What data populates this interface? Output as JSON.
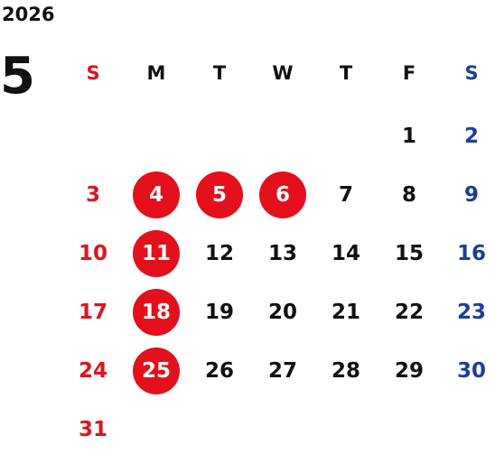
{
  "year": "2026",
  "month": "5",
  "weekdays": [
    "S",
    "M",
    "T",
    "W",
    "T",
    "F",
    "S"
  ],
  "days": [
    [
      "",
      "",
      "",
      "",
      "",
      "1",
      "2"
    ],
    [
      "3",
      "4",
      "5",
      "6",
      "7",
      "8",
      "9"
    ],
    [
      "10",
      "11",
      "12",
      "13",
      "14",
      "15",
      "16"
    ],
    [
      "17",
      "18",
      "19",
      "20",
      "21",
      "22",
      "23"
    ],
    [
      "24",
      "25",
      "26",
      "27",
      "28",
      "29",
      "30"
    ],
    [
      "31",
      "",
      "",
      "",
      "",
      "",
      ""
    ]
  ],
  "highlighted_days": [
    "4",
    "5",
    "6",
    "11",
    "18",
    "25"
  ],
  "colors": {
    "sunday": "#e0121d",
    "saturday": "#1c3f94",
    "weekday": "#111111",
    "highlight_bg": "#e3101b",
    "highlight_text": "#ffffff"
  }
}
